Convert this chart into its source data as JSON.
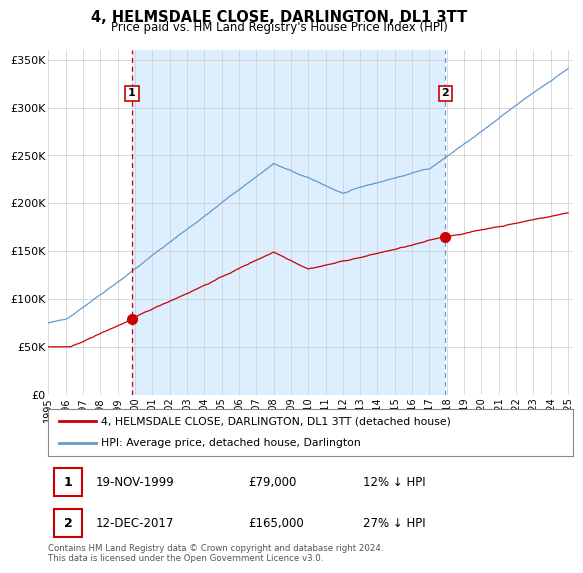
{
  "title": "4, HELMSDALE CLOSE, DARLINGTON, DL1 3TT",
  "subtitle": "Price paid vs. HM Land Registry's House Price Index (HPI)",
  "ylim": [
    0,
    360000
  ],
  "yticks": [
    0,
    50000,
    100000,
    150000,
    200000,
    250000,
    300000,
    350000
  ],
  "ytick_labels": [
    "£0",
    "£50K",
    "£100K",
    "£150K",
    "£200K",
    "£250K",
    "£300K",
    "£350K"
  ],
  "hpi_color": "#6699cc",
  "price_color": "#cc0000",
  "shade_color": "#ddeeff",
  "marker1_price": 79000,
  "marker1_date_str": "19-NOV-1999",
  "marker1_pct": "12% ↓ HPI",
  "marker2_price": 165000,
  "marker2_date_str": "12-DEC-2017",
  "marker2_pct": "27% ↓ HPI",
  "legend_line1": "4, HELMSDALE CLOSE, DARLINGTON, DL1 3TT (detached house)",
  "legend_line2": "HPI: Average price, detached house, Darlington",
  "footer": "Contains HM Land Registry data © Crown copyright and database right 2024.\nThis data is licensed under the Open Government Licence v3.0.",
  "background_color": "#ffffff",
  "grid_color": "#cccccc"
}
